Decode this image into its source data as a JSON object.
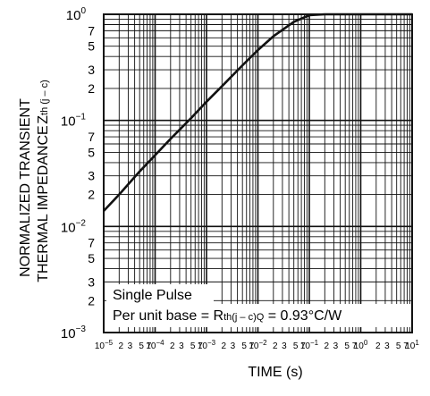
{
  "chart_data": {
    "type": "line",
    "ylabel_line1": "NORMALIZED TRANSIENT",
    "ylabel_line2": "THERMAL IMPEDANCE",
    "ylabel_symbol": "Z",
    "ylabel_symbol_sub": "th (j – c)",
    "xlabel": "TIME   (s)",
    "x_scale": "log",
    "y_scale": "log",
    "xlim": [
      1e-05,
      10
    ],
    "ylim": [
      0.001,
      1
    ],
    "grid": true,
    "y_major_ticks": [
      {
        "base": "10",
        "exp": "0"
      },
      {
        "base": "10",
        "exp": "−1"
      },
      {
        "base": "10",
        "exp": "−2"
      },
      {
        "base": "10",
        "exp": "−3"
      }
    ],
    "y_minor_tick_labels": [
      "7",
      "5",
      "3",
      "2"
    ],
    "x_decade_labels": [
      {
        "base": "10",
        "exp": "−5"
      },
      {
        "base": "10",
        "exp": "−4"
      },
      {
        "base": "10",
        "exp": "−3"
      },
      {
        "base": "10",
        "exp": "−2"
      },
      {
        "base": "10",
        "exp": "−1"
      },
      {
        "base": "10",
        "exp": "0"
      },
      {
        "base": "10",
        "exp": "1"
      }
    ],
    "x_minor_tick_labels": [
      "2",
      "3",
      "5",
      "7"
    ],
    "annotation_line1": "Single Pulse",
    "annotation_line2_prefix": "Per unit base = R",
    "annotation_line2_sub": "th(j – c)Q",
    "annotation_line2_suffix": " = 0.93°C/W",
    "series": [
      {
        "x": [
          1e-05,
          2e-05,
          5e-05,
          0.0001,
          0.0002,
          0.0005,
          0.001,
          0.002,
          0.005,
          0.01,
          0.02,
          0.05,
          0.1,
          0.2,
          0.5,
          1,
          10
        ],
        "values": [
          0.014,
          0.02,
          0.033,
          0.047,
          0.067,
          0.105,
          0.15,
          0.21,
          0.33,
          0.46,
          0.62,
          0.85,
          0.98,
          1.0,
          1.0,
          1.0,
          1.0
        ]
      }
    ]
  }
}
